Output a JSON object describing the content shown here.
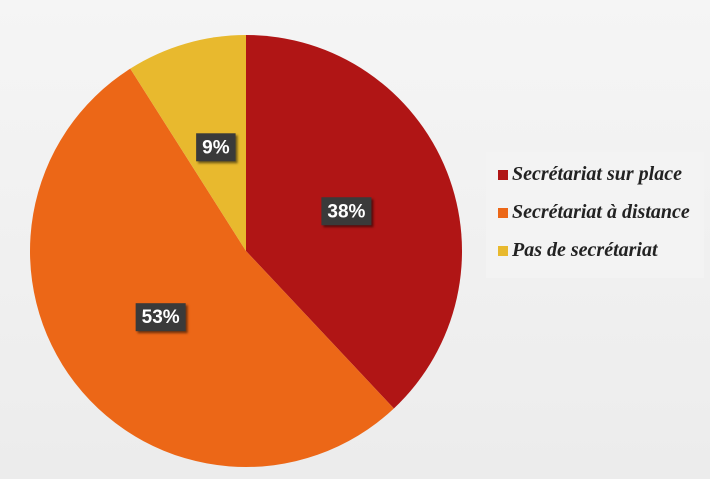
{
  "chart_data": {
    "type": "pie",
    "categories": [
      "Secrétariat sur place",
      "Secrétariat à distance",
      "Pas de secrétariat"
    ],
    "values": [
      38,
      53,
      9
    ],
    "value_labels": [
      "38%",
      "53%",
      "9%"
    ],
    "colors": [
      "#b01515",
      "#ec6717",
      "#e8b92e"
    ],
    "legend": "right"
  }
}
